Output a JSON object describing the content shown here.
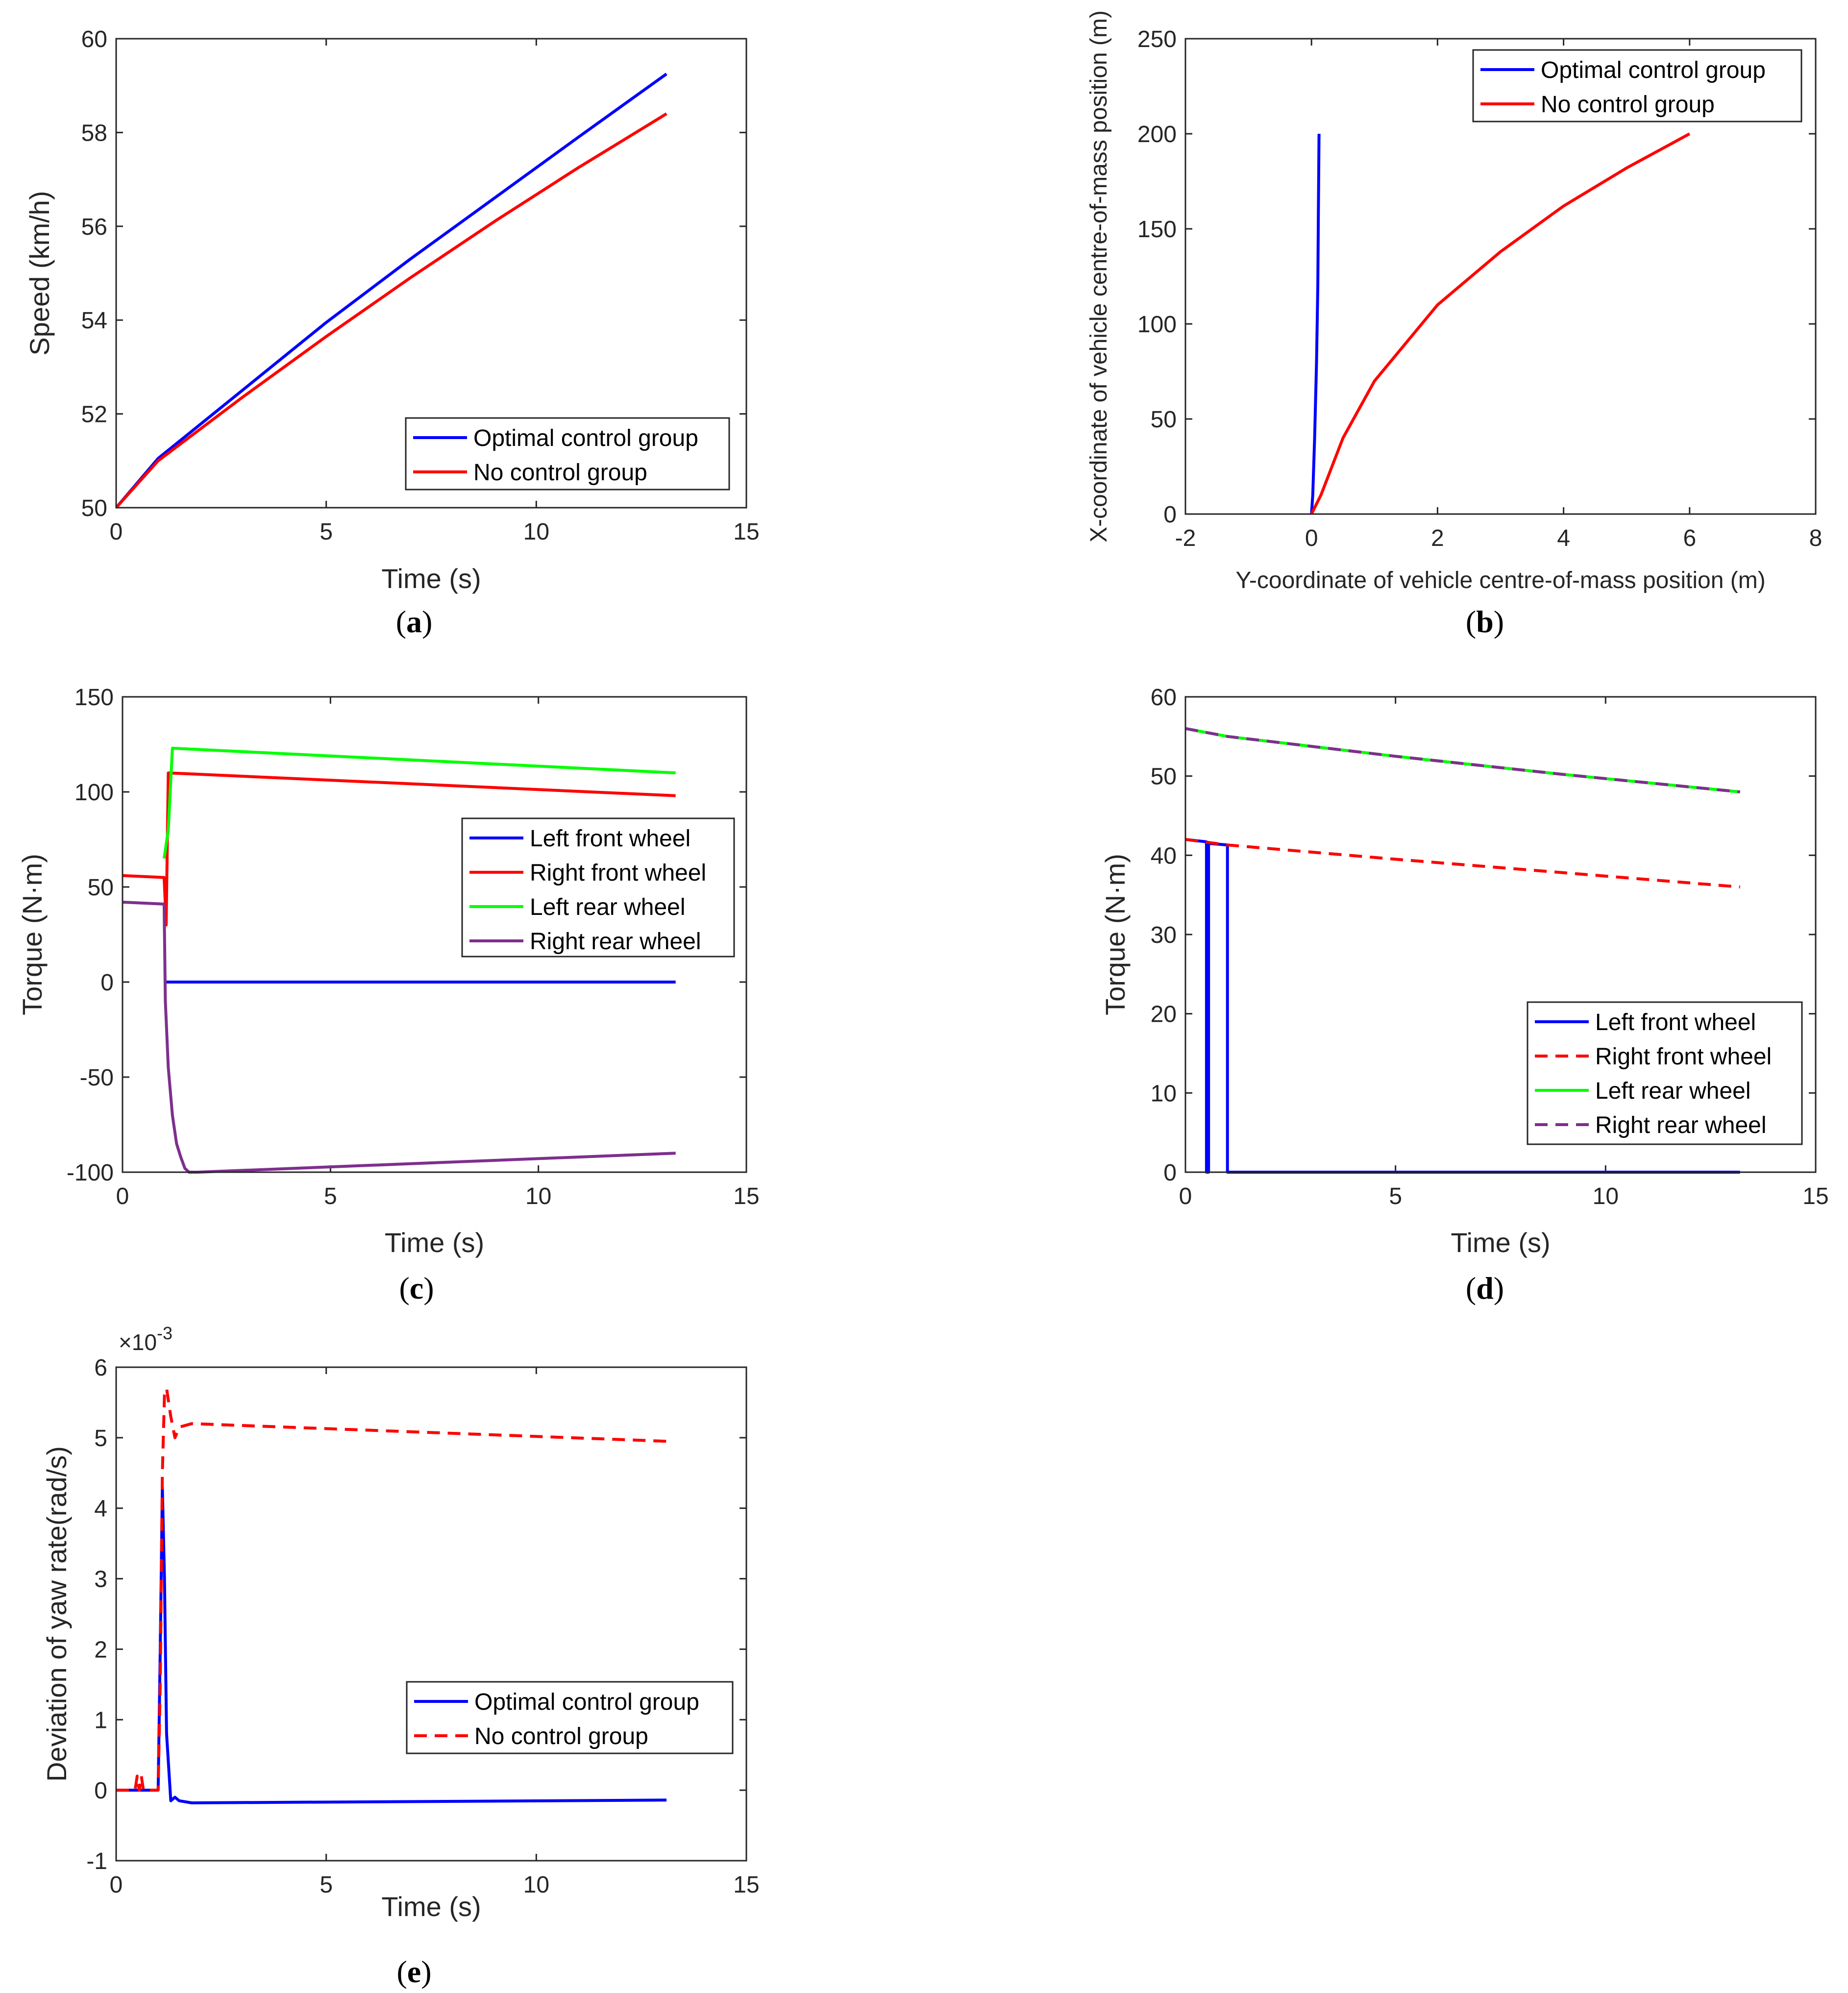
{
  "chart_data": [
    {
      "id": "a",
      "panel_label": "a",
      "type": "line",
      "xlabel": "Time (s)",
      "ylabel": "Speed (km/h)",
      "xlim": [
        0,
        15
      ],
      "ylim": [
        50,
        60
      ],
      "xticks": [
        0,
        5,
        10,
        15
      ],
      "yticks": [
        50,
        52,
        54,
        56,
        58,
        60
      ],
      "legend_position": "bottom-right",
      "series": [
        {
          "name": "Optimal control group",
          "color": "#0000ff",
          "style": "solid",
          "x": [
            0,
            1,
            3,
            5,
            7,
            9,
            11,
            13.1
          ],
          "y": [
            50,
            51.05,
            52.5,
            53.95,
            55.3,
            56.6,
            57.9,
            59.25
          ]
        },
        {
          "name": "No control group",
          "color": "#ff0000",
          "style": "solid",
          "x": [
            0,
            1,
            3,
            5,
            7,
            9,
            11,
            13.1
          ],
          "y": [
            50,
            51.0,
            52.35,
            53.65,
            54.9,
            56.1,
            57.25,
            58.4
          ]
        }
      ]
    },
    {
      "id": "b",
      "panel_label": "b",
      "type": "line",
      "xlabel": "Y-coordinate of vehicle centre-of-mass position (m)",
      "ylabel": "X-coordinate of vehicle centre-of-mass position (m)",
      "xlim": [
        -2,
        8
      ],
      "ylim": [
        0,
        250
      ],
      "xticks": [
        -2,
        0,
        2,
        4,
        6,
        8
      ],
      "yticks": [
        0,
        50,
        100,
        150,
        200,
        250
      ],
      "legend_position": "top-right",
      "series": [
        {
          "name": "Optimal control group",
          "color": "#0000ff",
          "style": "solid",
          "x": [
            0.0,
            0.02,
            0.05,
            0.08,
            0.1,
            0.11,
            0.12
          ],
          "y": [
            0,
            10,
            40,
            80,
            120,
            160,
            200
          ]
        },
        {
          "name": "No control group",
          "color": "#ff0000",
          "style": "solid",
          "x": [
            0.0,
            0.15,
            0.5,
            1.0,
            2.0,
            3.0,
            4.0,
            5.0,
            6.0
          ],
          "y": [
            0,
            10,
            40,
            70,
            110,
            138,
            162,
            182,
            200
          ]
        }
      ]
    },
    {
      "id": "c",
      "panel_label": "c",
      "type": "line",
      "xlabel": "Time (s)",
      "ylabel": "Torque (N·m)",
      "xlim": [
        0,
        15
      ],
      "ylim": [
        -100,
        150
      ],
      "xticks": [
        0,
        5,
        10,
        15
      ],
      "yticks": [
        -100,
        -50,
        0,
        50,
        100,
        150
      ],
      "legend_position": "middle-right",
      "series": [
        {
          "name": "Left front wheel",
          "color": "#0000ff",
          "style": "solid",
          "x": [
            1.05,
            1.1,
            13.3
          ],
          "y": [
            0,
            0,
            0
          ]
        },
        {
          "name": "Right front wheel",
          "color": "#ff0000",
          "style": "solid",
          "x": [
            0,
            1.0,
            1.05,
            1.1,
            13.3
          ],
          "y": [
            56,
            55,
            30,
            110,
            98
          ]
        },
        {
          "name": "Left rear wheel",
          "color": "#00ff00",
          "style": "solid",
          "x": [
            1.0,
            1.1,
            1.2,
            13.3
          ],
          "y": [
            65,
            80,
            123,
            110
          ]
        },
        {
          "name": "Right rear wheel",
          "color": "#7e2f8e",
          "style": "solid",
          "x": [
            0,
            1.0,
            1.03,
            1.1,
            1.2,
            1.3,
            1.4,
            1.5,
            1.6,
            1.8,
            13.3
          ],
          "y": [
            42,
            41,
            -10,
            -45,
            -70,
            -85,
            -92,
            -98,
            -100,
            -100,
            -90
          ]
        }
      ]
    },
    {
      "id": "d",
      "panel_label": "d",
      "type": "line",
      "xlabel": "Time (s)",
      "ylabel": "Torque (N·m)",
      "xlim": [
        0,
        15
      ],
      "ylim": [
        0,
        60
      ],
      "xticks": [
        0,
        5,
        10,
        15
      ],
      "yticks": [
        0,
        10,
        20,
        30,
        40,
        50,
        60
      ],
      "legend_position": "bottom-right",
      "series": [
        {
          "name": "Left front wheel",
          "color": "#0000ff",
          "style": "solid",
          "x": [
            0,
            0.5,
            0.5,
            0.55,
            0.55,
            1.0,
            1.0,
            13.2
          ],
          "y": [
            42,
            41.7,
            0,
            0,
            41.5,
            41.3,
            0,
            0
          ]
        },
        {
          "name": "Right front wheel",
          "color": "#ff0000",
          "style": "dashed",
          "x": [
            0,
            1,
            5,
            9,
            13.2
          ],
          "y": [
            42,
            41.3,
            39.5,
            37.8,
            36
          ]
        },
        {
          "name": "Left rear wheel",
          "color": "#00ff00",
          "style": "solid",
          "x": [
            0,
            1,
            5,
            9,
            13.2
          ],
          "y": [
            56,
            55,
            52.5,
            50.2,
            48
          ]
        },
        {
          "name": "Right rear wheel",
          "color": "#7e2f8e",
          "style": "dashed",
          "x": [
            0,
            1,
            5,
            9,
            13.2
          ],
          "y": [
            56,
            55,
            52.5,
            50.2,
            48
          ]
        }
      ]
    },
    {
      "id": "e",
      "panel_label": "e",
      "type": "line",
      "xlabel": "Time (s)",
      "ylabel": "Deviation of yaw rate(rad/s)",
      "exponent": "×10",
      "exponent_power": "-3",
      "xlim": [
        0,
        15
      ],
      "ylim": [
        -1,
        6
      ],
      "xticks": [
        0,
        5,
        10,
        15
      ],
      "yticks": [
        -1,
        0,
        1,
        2,
        3,
        4,
        5,
        6
      ],
      "legend_position": "middle-right",
      "series": [
        {
          "name": "Optimal control group",
          "color": "#0000ff",
          "style": "solid",
          "x": [
            0,
            1.0,
            1.05,
            1.1,
            1.15,
            1.2,
            1.3,
            1.4,
            1.5,
            1.8,
            13.1
          ],
          "y": [
            0,
            0,
            2.0,
            4.3,
            3.0,
            0.8,
            -0.15,
            -0.1,
            -0.15,
            -0.18,
            -0.14
          ]
        },
        {
          "name": "No control group",
          "color": "#ff0000",
          "style": "dashed",
          "x": [
            0,
            0.45,
            0.5,
            0.55,
            0.6,
            0.65,
            1.0,
            1.05,
            1.1,
            1.15,
            1.2,
            1.3,
            1.4,
            1.5,
            1.8,
            13.1
          ],
          "y": [
            0,
            0,
            0.2,
            0,
            0.2,
            0,
            0,
            1.5,
            4.5,
            5.6,
            5.7,
            5.3,
            5.0,
            5.15,
            5.2,
            4.95
          ]
        }
      ]
    }
  ]
}
